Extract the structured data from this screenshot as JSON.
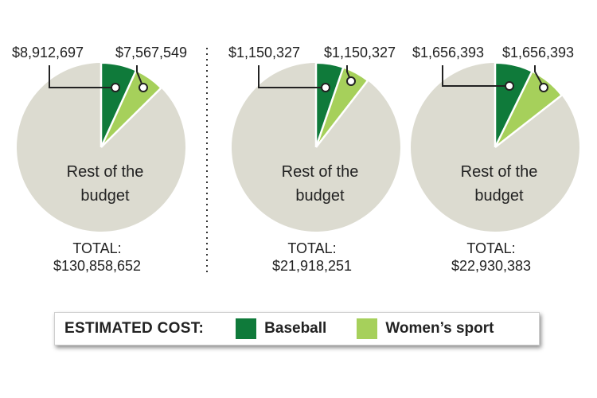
{
  "chart_data": [
    {
      "type": "pie",
      "slices": [
        {
          "name": "Baseball",
          "value": 8912697,
          "label": "$8,912,697"
        },
        {
          "name": "Women's sport",
          "value": 7567549,
          "label": "$7,567,549"
        },
        {
          "name": "Rest of the budget",
          "value": 114378406,
          "label": "Rest of the\nbudget"
        }
      ],
      "total_label": "TOTAL:",
      "total_value": "$130,858,652"
    },
    {
      "type": "pie",
      "slices": [
        {
          "name": "Baseball",
          "value": 1150327,
          "label": "$1,150,327"
        },
        {
          "name": "Women's sport",
          "value": 1150327,
          "label": "$1,150,327"
        },
        {
          "name": "Rest of the budget",
          "value": 19617597,
          "label": "Rest of the\nbudget"
        }
      ],
      "total_label": "TOTAL:",
      "total_value": "$21,918,251"
    },
    {
      "type": "pie",
      "slices": [
        {
          "name": "Baseball",
          "value": 1656393,
          "label": "$1,656,393"
        },
        {
          "name": "Women's sport",
          "value": 1656393,
          "label": "$1,656,393"
        },
        {
          "name": "Rest of the budget",
          "value": 19617597,
          "label": "Rest of the\nbudget"
        }
      ],
      "total_label": "TOTAL:",
      "total_value": "$22,930,383"
    }
  ],
  "colors": {
    "baseball": "#0f7a3a",
    "womens_sport": "#a6d05b",
    "rest": "#dcdbd0",
    "text": "#222222"
  },
  "legend": {
    "title": "ESTIMATED COST:",
    "items": [
      {
        "label": "Baseball",
        "color": "#0f7a3a"
      },
      {
        "label": "Women’s sport",
        "color": "#a6d05b"
      }
    ]
  }
}
